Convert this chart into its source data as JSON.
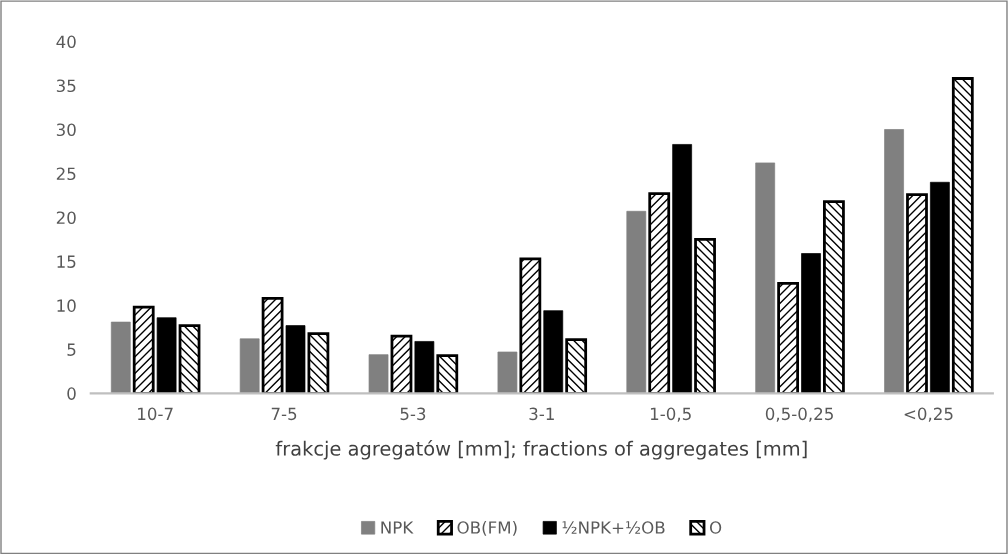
{
  "chart_data": {
    "type": "bar",
    "xlabel": "frakcje agregatów [mm]; fractions of aggregates [mm]",
    "categories": [
      "10-7",
      "7-5",
      "5-3",
      "3-1",
      "1-0,5",
      "0,5-0,25",
      "<0,25"
    ],
    "series": [
      {
        "name": "NPK",
        "color": "#808080",
        "values": [
          8.1,
          6.2,
          4.4,
          4.7,
          20.7,
          26.2,
          30.0
        ]
      },
      {
        "name": "OB(FM)",
        "color": "#000000",
        "values": [
          9.8,
          10.8,
          6.5,
          15.3,
          22.7,
          12.5,
          22.6
        ]
      },
      {
        "name": "½NPK+½OB",
        "color": "#000000",
        "values": [
          8.6,
          7.7,
          5.9,
          9.4,
          28.3,
          15.9,
          24.0
        ]
      },
      {
        "name": "O",
        "color": "#000000",
        "values": [
          7.7,
          6.8,
          4.3,
          6.1,
          17.5,
          21.8,
          35.8
        ]
      }
    ],
    "ylim": [
      0,
      40
    ],
    "yticks": [
      0,
      5,
      10,
      15,
      20,
      25,
      30,
      35,
      40
    ],
    "grid": false,
    "legend": "bottom"
  }
}
